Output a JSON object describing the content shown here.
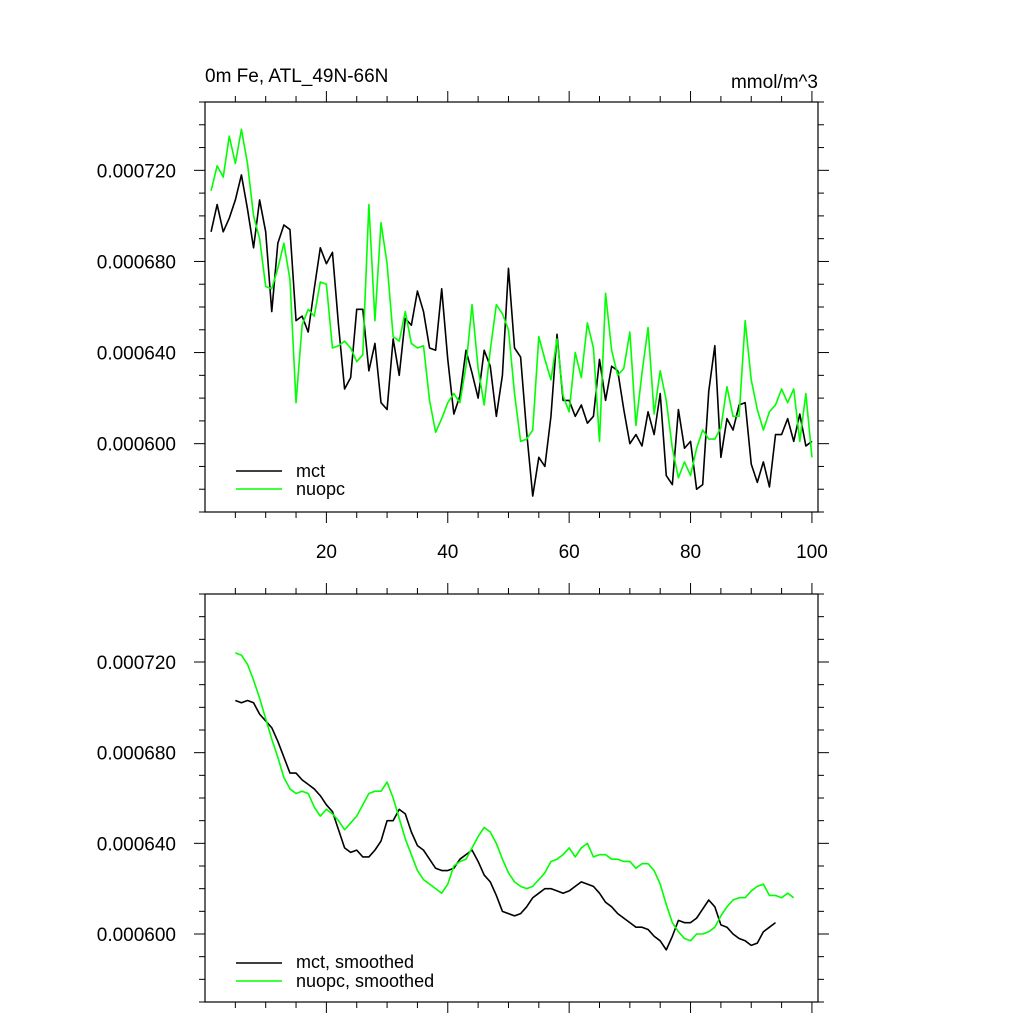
{
  "chart_data": [
    {
      "type": "line",
      "title_left": "0m Fe, ATL_49N-66N",
      "title_right": "mmol/m^3",
      "xlim": [
        0,
        101
      ],
      "ylim": [
        0.00057,
        0.00075
      ],
      "xticks": [
        20,
        40,
        60,
        80,
        100
      ],
      "xtick_labels": [
        "20",
        "40",
        "60",
        "80",
        "100"
      ],
      "yticks": [
        0.0006,
        0.00064,
        0.00068,
        0.00072
      ],
      "ytick_labels": [
        "0.000600",
        "0.000640",
        "0.000680",
        "0.000720"
      ],
      "legend": [
        "mct",
        "nuopc"
      ],
      "series": [
        {
          "name": "mct",
          "color": "#000000",
          "x_start": 1,
          "values": [
            0.000693,
            0.000705,
            0.000693,
            0.000699,
            0.000707,
            0.000718,
            0.000703,
            0.000686,
            0.000707,
            0.000693,
            0.000658,
            0.000688,
            0.000696,
            0.000694,
            0.000654,
            0.000656,
            0.000649,
            0.000668,
            0.000686,
            0.000679,
            0.000684,
            0.000652,
            0.000624,
            0.000629,
            0.000659,
            0.000659,
            0.000632,
            0.000644,
            0.000618,
            0.000615,
            0.000646,
            0.00063,
            0.000655,
            0.000652,
            0.000667,
            0.000658,
            0.000642,
            0.000641,
            0.000668,
            0.000637,
            0.000613,
            0.000621,
            0.000641,
            0.000631,
            0.00062,
            0.000641,
            0.000634,
            0.000612,
            0.00063,
            0.000677,
            0.000642,
            0.000638,
            0.000605,
            0.000577,
            0.000594,
            0.00059,
            0.000612,
            0.000648,
            0.000619,
            0.000619,
            0.000612,
            0.000617,
            0.000609,
            0.000612,
            0.000637,
            0.000619,
            0.000634,
            0.000632,
            0.000615,
            0.0006,
            0.000604,
            0.000599,
            0.000614,
            0.000604,
            0.000622,
            0.000586,
            0.000582,
            0.000615,
            0.000598,
            0.000601,
            0.00058,
            0.000582,
            0.000623,
            0.000643,
            0.000594,
            0.000611,
            0.000606,
            0.000617,
            0.000618,
            0.000591,
            0.000583,
            0.000592,
            0.000581,
            0.000604,
            0.000604,
            0.000611,
            0.000601,
            0.000613,
            0.000599,
            0.000601
          ]
        },
        {
          "name": "nuopc",
          "color": "#00ff00",
          "x_start": 1,
          "values": [
            0.000711,
            0.000722,
            0.000717,
            0.000735,
            0.000723,
            0.000738,
            0.000723,
            0.0007,
            0.00069,
            0.000669,
            0.000668,
            0.000677,
            0.000688,
            0.000672,
            0.000618,
            0.000652,
            0.000659,
            0.000656,
            0.000671,
            0.00067,
            0.000642,
            0.000643,
            0.000645,
            0.000642,
            0.000636,
            0.000639,
            0.000705,
            0.000654,
            0.000697,
            0.000679,
            0.000647,
            0.000645,
            0.000658,
            0.000644,
            0.000642,
            0.000643,
            0.000619,
            0.000605,
            0.000611,
            0.000618,
            0.000622,
            0.000618,
            0.000634,
            0.000661,
            0.000633,
            0.000617,
            0.000641,
            0.000661,
            0.000657,
            0.00065,
            0.000622,
            0.000601,
            0.000602,
            0.000606,
            0.000647,
            0.000637,
            0.000628,
            0.000646,
            0.000621,
            0.000614,
            0.00064,
            0.000629,
            0.000653,
            0.000642,
            0.000601,
            0.000666,
            0.000641,
            0.00063,
            0.000633,
            0.000649,
            0.000608,
            0.000631,
            0.000651,
            0.000613,
            0.000632,
            0.000619,
            0.000598,
            0.000585,
            0.000592,
            0.000586,
            0.000598,
            0.000606,
            0.000602,
            0.000602,
            0.000607,
            0.000625,
            0.000612,
            0.000612,
            0.000654,
            0.000628,
            0.000615,
            0.000606,
            0.000614,
            0.000617,
            0.000624,
            0.000618,
            0.000624,
            0.000601,
            0.000622,
            0.000594
          ]
        }
      ]
    },
    {
      "type": "line",
      "xlim": [
        0,
        101
      ],
      "ylim": [
        0.00057,
        0.00075
      ],
      "xticks": [
        20,
        40,
        60,
        80,
        100
      ],
      "yticks": [
        0.0006,
        0.00064,
        0.00068,
        0.00072
      ],
      "ytick_labels": [
        "0.000600",
        "0.000640",
        "0.000680",
        "0.000720"
      ],
      "legend": [
        "mct, smoothed",
        "nuopc, smoothed"
      ],
      "series": [
        {
          "name": "mct, smoothed",
          "color": "#000000",
          "x_start": 5,
          "values": [
            0.000703,
            0.000702,
            0.000703,
            0.000702,
            0.000697,
            0.000694,
            0.000691,
            0.000685,
            0.000678,
            0.000671,
            0.000671,
            0.000668,
            0.000666,
            0.000664,
            0.000661,
            0.000657,
            0.000654,
            0.000646,
            0.000638,
            0.000636,
            0.000637,
            0.000634,
            0.000634,
            0.000637,
            0.000641,
            0.00065,
            0.00065,
            0.000655,
            0.000653,
            0.000645,
            0.000639,
            0.000637,
            0.000633,
            0.000629,
            0.000628,
            0.000628,
            0.000629,
            0.000633,
            0.000635,
            0.000637,
            0.000632,
            0.000626,
            0.000623,
            0.000617,
            0.00061,
            0.000609,
            0.000608,
            0.000609,
            0.000612,
            0.000616,
            0.000618,
            0.00062,
            0.00062,
            0.000619,
            0.000618,
            0.000619,
            0.000621,
            0.000623,
            0.000622,
            0.000621,
            0.000618,
            0.000614,
            0.000612,
            0.000609,
            0.000607,
            0.000605,
            0.000603,
            0.000603,
            0.000602,
            0.000599,
            0.000597,
            0.000593,
            0.000599,
            0.000606,
            0.000605,
            0.000605,
            0.000607,
            0.000611,
            0.000615,
            0.000612,
            0.000604,
            0.000603,
            0.0006,
            0.000598,
            0.000597,
            0.000595,
            0.000596,
            0.000601,
            0.000603,
            0.000605
          ]
        },
        {
          "name": "nuopc, smoothed",
          "color": "#00ff00",
          "x_start": 5,
          "values": [
            0.000724,
            0.000723,
            0.000719,
            0.000712,
            0.000704,
            0.000695,
            0.000686,
            0.000678,
            0.000669,
            0.000664,
            0.000662,
            0.000663,
            0.000662,
            0.000656,
            0.000652,
            0.000655,
            0.000653,
            0.00065,
            0.000646,
            0.000649,
            0.000652,
            0.000657,
            0.000662,
            0.000663,
            0.000663,
            0.000667,
            0.00066,
            0.000651,
            0.000642,
            0.000635,
            0.000628,
            0.000624,
            0.000622,
            0.00062,
            0.000618,
            0.000622,
            0.00063,
            0.000632,
            0.000633,
            0.000638,
            0.000643,
            0.000647,
            0.000645,
            0.00064,
            0.000633,
            0.000627,
            0.000623,
            0.000621,
            0.00062,
            0.000621,
            0.000624,
            0.000627,
            0.000632,
            0.000633,
            0.000635,
            0.000638,
            0.000634,
            0.000638,
            0.00064,
            0.000634,
            0.000635,
            0.000635,
            0.000633,
            0.000633,
            0.000632,
            0.000632,
            0.000629,
            0.000631,
            0.000631,
            0.000628,
            0.000622,
            0.000613,
            0.000605,
            0.000601,
            0.000598,
            0.000597,
            0.0006,
            0.0006,
            0.000601,
            0.000603,
            0.000608,
            0.000612,
            0.000615,
            0.000616,
            0.000616,
            0.000619,
            0.000621,
            0.000622,
            0.000617,
            0.000617,
            0.000616,
            0.000618,
            0.000616
          ]
        }
      ]
    }
  ]
}
